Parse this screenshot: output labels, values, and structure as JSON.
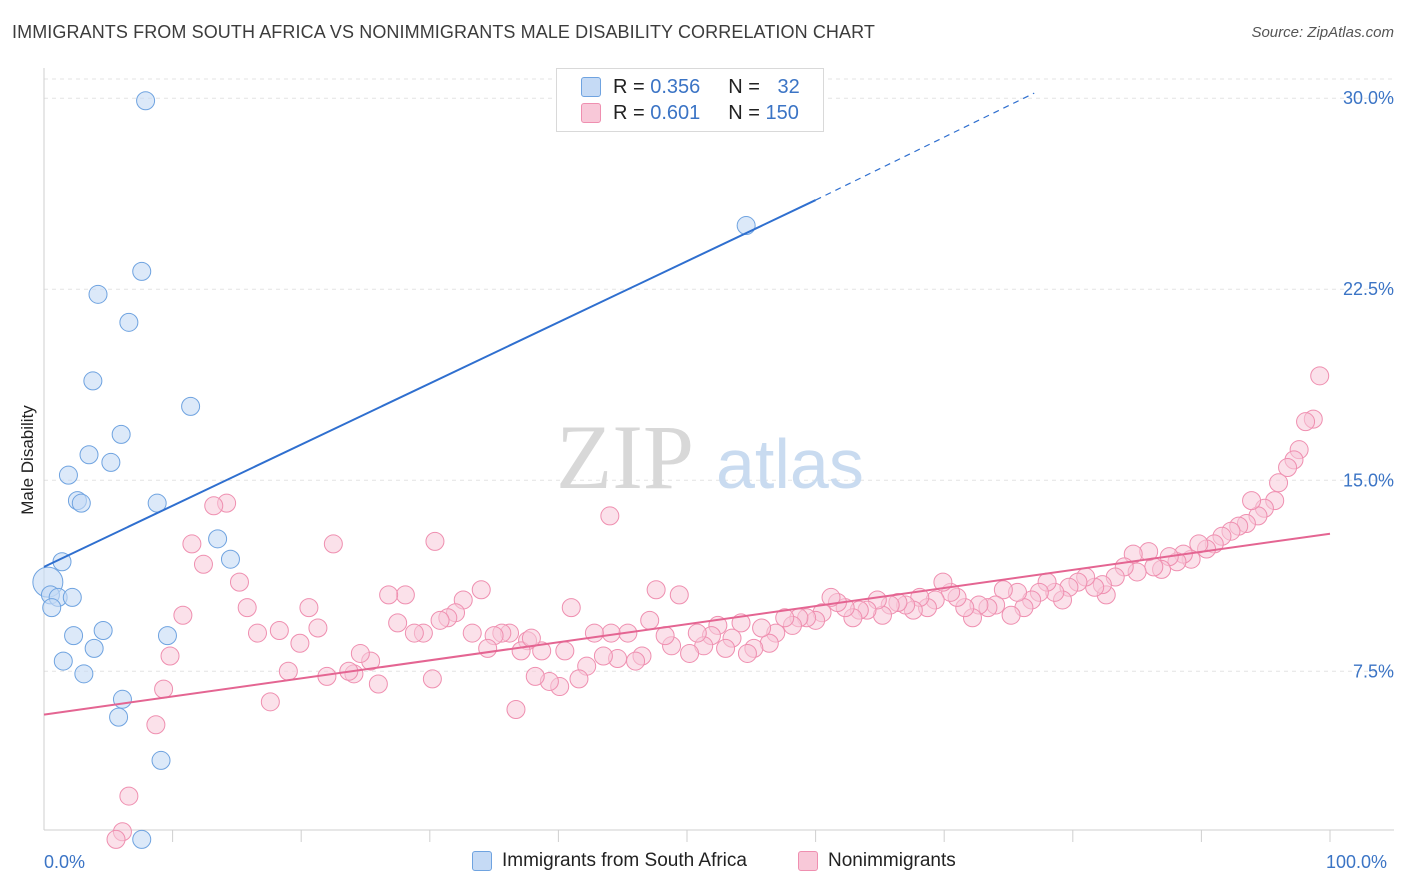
{
  "title": "IMMIGRANTS FROM SOUTH AFRICA VS NONIMMIGRANTS MALE DISABILITY CORRELATION CHART",
  "source": "Source: ZipAtlas.com",
  "watermark": {
    "zip": "ZIP",
    "atlas": "atlas"
  },
  "legend": {
    "rows": [
      {
        "r_label": "R = ",
        "r_value": "0.356",
        "n_label": "N = ",
        "n_value": "32"
      },
      {
        "r_label": "R = ",
        "r_value": "0.601",
        "n_label": "N = ",
        "n_value": "150"
      }
    ]
  },
  "chart_data": {
    "type": "scatter",
    "title": "IMMIGRANTS FROM SOUTH AFRICA VS NONIMMIGRANTS MALE DISABILITY CORRELATION CHART",
    "xlabel": "",
    "ylabel": "Male Disability",
    "xlim": [
      0,
      100
    ],
    "ylim": [
      0,
      30.5
    ],
    "x_tick_labels": [
      "0.0%",
      "100.0%"
    ],
    "y_ticks": [
      7.5,
      15.0,
      22.5,
      30.0
    ],
    "y_tick_labels": [
      "7.5%",
      "15.0%",
      "22.5%",
      "30.0%"
    ],
    "grid": true,
    "legend_position": "bottom-center",
    "colors": {
      "blue": "#6fa3e0",
      "blue_fill": "#c5daf5",
      "blue_line": "#2f6fcf",
      "pink": "#ef8fb0",
      "pink_fill": "#f8c8d8",
      "pink_line": "#e46592"
    },
    "series": [
      {
        "name": "Immigrants from South Africa",
        "color": "#6fa3e0",
        "trend": {
          "x": [
            0,
            60
          ],
          "y": [
            11.6,
            26.0
          ],
          "dashed_to": [
            77,
            30.2
          ]
        },
        "points": [
          [
            7.9,
            29.9
          ],
          [
            54.6,
            25.0
          ],
          [
            7.6,
            23.2
          ],
          [
            4.2,
            22.3
          ],
          [
            6.6,
            21.2
          ],
          [
            3.8,
            18.9
          ],
          [
            11.4,
            17.9
          ],
          [
            6.0,
            16.8
          ],
          [
            3.5,
            16.0
          ],
          [
            5.2,
            15.7
          ],
          [
            1.9,
            15.2
          ],
          [
            2.6,
            14.2
          ],
          [
            2.9,
            14.1
          ],
          [
            8.8,
            14.1
          ],
          [
            13.5,
            12.7
          ],
          [
            14.5,
            11.9
          ],
          [
            1.4,
            11.8
          ],
          [
            0.3,
            11.0
          ],
          [
            0.5,
            10.5
          ],
          [
            1.1,
            10.4
          ],
          [
            2.2,
            10.4
          ],
          [
            0.6,
            10.0
          ],
          [
            4.6,
            9.1
          ],
          [
            2.3,
            8.9
          ],
          [
            9.6,
            8.9
          ],
          [
            3.9,
            8.4
          ],
          [
            1.5,
            7.9
          ],
          [
            3.1,
            7.4
          ],
          [
            6.1,
            6.4
          ],
          [
            5.8,
            5.7
          ],
          [
            9.1,
            4.0
          ],
          [
            7.6,
            0.9
          ]
        ]
      },
      {
        "name": "Nonimmigrants",
        "color": "#ef8fb0",
        "trend": {
          "x": [
            0,
            100
          ],
          "y": [
            5.8,
            12.9
          ]
        },
        "points": [
          [
            99.2,
            19.1
          ],
          [
            98.7,
            17.4
          ],
          [
            98.1,
            17.3
          ],
          [
            97.6,
            16.2
          ],
          [
            97.2,
            15.8
          ],
          [
            96.7,
            15.5
          ],
          [
            96.0,
            14.9
          ],
          [
            95.7,
            14.2
          ],
          [
            94.9,
            13.9
          ],
          [
            94.4,
            13.6
          ],
          [
            93.9,
            14.2
          ],
          [
            93.5,
            13.3
          ],
          [
            92.9,
            13.2
          ],
          [
            92.3,
            13.0
          ],
          [
            91.6,
            12.8
          ],
          [
            91.0,
            12.5
          ],
          [
            90.4,
            12.3
          ],
          [
            89.8,
            12.5
          ],
          [
            89.2,
            11.9
          ],
          [
            88.6,
            12.1
          ],
          [
            88.1,
            11.8
          ],
          [
            87.5,
            12.0
          ],
          [
            86.9,
            11.5
          ],
          [
            86.3,
            11.6
          ],
          [
            85.9,
            12.2
          ],
          [
            85.0,
            11.4
          ],
          [
            84.7,
            12.1
          ],
          [
            84.0,
            11.6
          ],
          [
            83.3,
            11.2
          ],
          [
            82.6,
            10.5
          ],
          [
            82.3,
            10.9
          ],
          [
            81.7,
            10.8
          ],
          [
            81.0,
            11.2
          ],
          [
            80.4,
            11.0
          ],
          [
            79.7,
            10.8
          ],
          [
            79.2,
            10.3
          ],
          [
            78.6,
            10.6
          ],
          [
            78.0,
            11.0
          ],
          [
            77.4,
            10.6
          ],
          [
            76.8,
            10.3
          ],
          [
            76.2,
            10.0
          ],
          [
            75.7,
            10.6
          ],
          [
            75.2,
            9.7
          ],
          [
            74.6,
            10.7
          ],
          [
            74.0,
            10.1
          ],
          [
            73.4,
            10.0
          ],
          [
            72.7,
            10.1
          ],
          [
            72.2,
            9.6
          ],
          [
            71.6,
            10.0
          ],
          [
            71.0,
            10.4
          ],
          [
            70.5,
            10.6
          ],
          [
            69.9,
            11.0
          ],
          [
            69.3,
            10.3
          ],
          [
            68.7,
            10.0
          ],
          [
            68.1,
            10.4
          ],
          [
            67.6,
            9.9
          ],
          [
            67.0,
            10.1
          ],
          [
            66.4,
            10.2
          ],
          [
            65.8,
            10.1
          ],
          [
            65.2,
            9.7
          ],
          [
            64.8,
            10.3
          ],
          [
            64.0,
            9.9
          ],
          [
            63.4,
            9.9
          ],
          [
            62.9,
            9.6
          ],
          [
            62.3,
            10.0
          ],
          [
            61.7,
            10.2
          ],
          [
            61.2,
            10.4
          ],
          [
            60.5,
            9.8
          ],
          [
            60.0,
            9.5
          ],
          [
            59.3,
            9.6
          ],
          [
            58.7,
            9.6
          ],
          [
            58.2,
            9.3
          ],
          [
            57.6,
            9.6
          ],
          [
            56.9,
            9.0
          ],
          [
            56.4,
            8.6
          ],
          [
            55.8,
            9.2
          ],
          [
            55.2,
            8.4
          ],
          [
            54.7,
            8.2
          ],
          [
            54.2,
            9.4
          ],
          [
            53.5,
            8.8
          ],
          [
            53.0,
            8.4
          ],
          [
            52.4,
            9.3
          ],
          [
            51.9,
            8.9
          ],
          [
            51.3,
            8.5
          ],
          [
            50.8,
            9.0
          ],
          [
            50.2,
            8.2
          ],
          [
            49.4,
            10.5
          ],
          [
            48.8,
            8.5
          ],
          [
            48.3,
            8.9
          ],
          [
            47.6,
            10.7
          ],
          [
            47.1,
            9.5
          ],
          [
            46.5,
            8.1
          ],
          [
            46.0,
            7.9
          ],
          [
            45.4,
            9.0
          ],
          [
            44.6,
            8.0
          ],
          [
            44.1,
            9.0
          ],
          [
            43.5,
            8.1
          ],
          [
            42.8,
            9.0
          ],
          [
            42.2,
            7.7
          ],
          [
            41.6,
            7.2
          ],
          [
            41.0,
            10.0
          ],
          [
            40.5,
            8.3
          ],
          [
            40.1,
            6.9
          ],
          [
            39.3,
            7.1
          ],
          [
            38.7,
            8.3
          ],
          [
            38.2,
            7.3
          ],
          [
            37.6,
            8.7
          ],
          [
            37.1,
            8.3
          ],
          [
            36.7,
            6.0
          ],
          [
            36.2,
            9.0
          ],
          [
            35.6,
            9.0
          ],
          [
            35.0,
            8.9
          ],
          [
            34.5,
            8.4
          ],
          [
            34.0,
            10.7
          ],
          [
            33.3,
            9.0
          ],
          [
            32.6,
            10.3
          ],
          [
            32.0,
            9.8
          ],
          [
            31.4,
            9.6
          ],
          [
            30.8,
            9.5
          ],
          [
            30.2,
            7.2
          ],
          [
            29.5,
            9.0
          ],
          [
            28.8,
            9.0
          ],
          [
            28.1,
            10.5
          ],
          [
            27.5,
            9.4
          ],
          [
            26.8,
            10.5
          ],
          [
            26.0,
            7.0
          ],
          [
            25.4,
            7.9
          ],
          [
            24.6,
            8.2
          ],
          [
            24.1,
            7.4
          ],
          [
            23.7,
            7.5
          ],
          [
            22.5,
            12.5
          ],
          [
            22.0,
            7.3
          ],
          [
            21.3,
            9.2
          ],
          [
            20.6,
            10.0
          ],
          [
            19.9,
            8.6
          ],
          [
            19.0,
            7.5
          ],
          [
            18.3,
            9.1
          ],
          [
            17.6,
            6.3
          ],
          [
            16.6,
            9.0
          ],
          [
            15.8,
            10.0
          ],
          [
            15.2,
            11.0
          ],
          [
            14.2,
            14.1
          ],
          [
            13.2,
            14.0
          ],
          [
            12.4,
            11.7
          ],
          [
            11.5,
            12.5
          ],
          [
            10.8,
            9.7
          ],
          [
            9.8,
            8.1
          ],
          [
            9.3,
            6.8
          ],
          [
            8.7,
            5.4
          ],
          [
            6.6,
            2.6
          ],
          [
            6.1,
            1.2
          ],
          [
            5.6,
            0.9
          ],
          [
            30.4,
            12.6
          ],
          [
            37.9,
            8.8
          ],
          [
            44.0,
            13.6
          ]
        ]
      }
    ]
  },
  "bottom_legend": [
    "Immigrants from South Africa",
    "Nonimmigrants"
  ],
  "axis_labels": {
    "x_left": "0.0%",
    "x_right": "100.0%",
    "y": "Male Disability"
  }
}
